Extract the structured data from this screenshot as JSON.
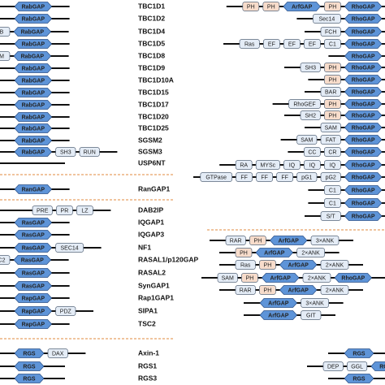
{
  "names": [
    "TBC1D1",
    "TBC1D2",
    "TBC1D4",
    "TBC1D5",
    "TBC1D8",
    "TBC1D9",
    "TBC1D10A",
    "TBC1D15",
    "TBC1D17",
    "TBC1D20",
    "TBC1D25",
    "SGSM2",
    "SGSM3",
    "USP6NT",
    "RanGAP1",
    "DAB2IP",
    "IQGAP1",
    "IQGAP3",
    "NF1",
    "RASAL1/p120GAP",
    "RASAL2",
    "SynGAP1",
    "Rap1GAP1",
    "SIPA1",
    "TSC2",
    "Axin-1",
    "RGS1",
    "RGS3"
  ],
  "left_rows": [
    [
      "RabGAP"
    ],
    [
      "RabGAP"
    ],
    [
      "B",
      "RabGAP"
    ],
    [
      "RabGAP"
    ],
    [
      "M",
      "RabGAP"
    ],
    [
      "RabGAP"
    ],
    [
      "RabGAP"
    ],
    [
      "RabGAP"
    ],
    [
      "RabGAP"
    ],
    [
      "RabGAP"
    ],
    [
      "RabGAP"
    ],
    [
      "RabGAP"
    ],
    [
      "RabGAP",
      "SH3",
      "RUN"
    ],
    [],
    [
      "RanGAP"
    ],
    [
      "PRE",
      "PR",
      "LZ"
    ],
    [
      "RasGAP"
    ],
    [
      "RasGAP"
    ],
    [
      "RasGAP",
      "SEC14"
    ],
    [
      "C2",
      "RasGAP"
    ],
    [
      "RasGAP"
    ],
    [
      "RasGAP"
    ],
    [
      "RapGAP"
    ],
    [
      "RapGAP",
      "PDZ"
    ],
    [
      "RapGAP"
    ],
    [
      "RGS",
      "DAX"
    ],
    [
      "RGS"
    ],
    [
      "RGS"
    ]
  ],
  "right_rows": [
    [
      "PH",
      "PH",
      "ArfGAP",
      "PH",
      "RhoGAP"
    ],
    [
      "Sec14",
      "RhoGAP"
    ],
    [
      "FCH",
      "RhoGAP"
    ],
    [
      "Ras",
      "EF",
      "EF",
      "EF",
      "C1",
      "RhoGAP"
    ],
    [
      "RhoGAP"
    ],
    [
      "SH3",
      "PH",
      "RhoGAP"
    ],
    [
      "PH",
      "RhoGAP"
    ],
    [
      "BAR",
      "RhoGAP"
    ],
    [
      "RhoGEF",
      "PH",
      "RhoGAP"
    ],
    [
      "SH2",
      "PH",
      "RhoGAP"
    ],
    [
      "SAM",
      "RhoGAP"
    ],
    [
      "SAM",
      "FAT",
      "RhoGAP"
    ],
    [
      "CC",
      "CR",
      "RhoGAP"
    ],
    [
      "RA",
      "MYSc",
      "IQ",
      "IQ",
      "IQ",
      "RhoGAP"
    ],
    [
      "GTPase",
      "FF",
      "FF",
      "FF",
      "pG1",
      "pG2",
      "RhoGAP"
    ],
    [
      "C1",
      "RhoGAP"
    ],
    [
      "C1",
      "RhoGAP"
    ],
    [
      "S/T",
      "RhoGAP"
    ],
    [
      "RAR",
      "PH",
      "ArfGAP",
      "3×ANK"
    ],
    [
      "PH",
      "ArfGAP",
      "2×ANK"
    ],
    [
      "Ras",
      "PH",
      "ArfGAP",
      "2×ANK"
    ],
    [
      "SAM",
      "PH",
      "ArfGAP",
      "2×ANK",
      "RhoGAP"
    ],
    [
      "RAR",
      "PH",
      "ArfGAP",
      "2×ANK"
    ],
    [
      "ArfGAP",
      "3×ANK"
    ],
    [
      "ArfGAP",
      "GIT"
    ],
    [
      "RGS"
    ],
    [
      "DEP",
      "GGL",
      "RGS"
    ],
    [
      "RGS"
    ]
  ]
}
